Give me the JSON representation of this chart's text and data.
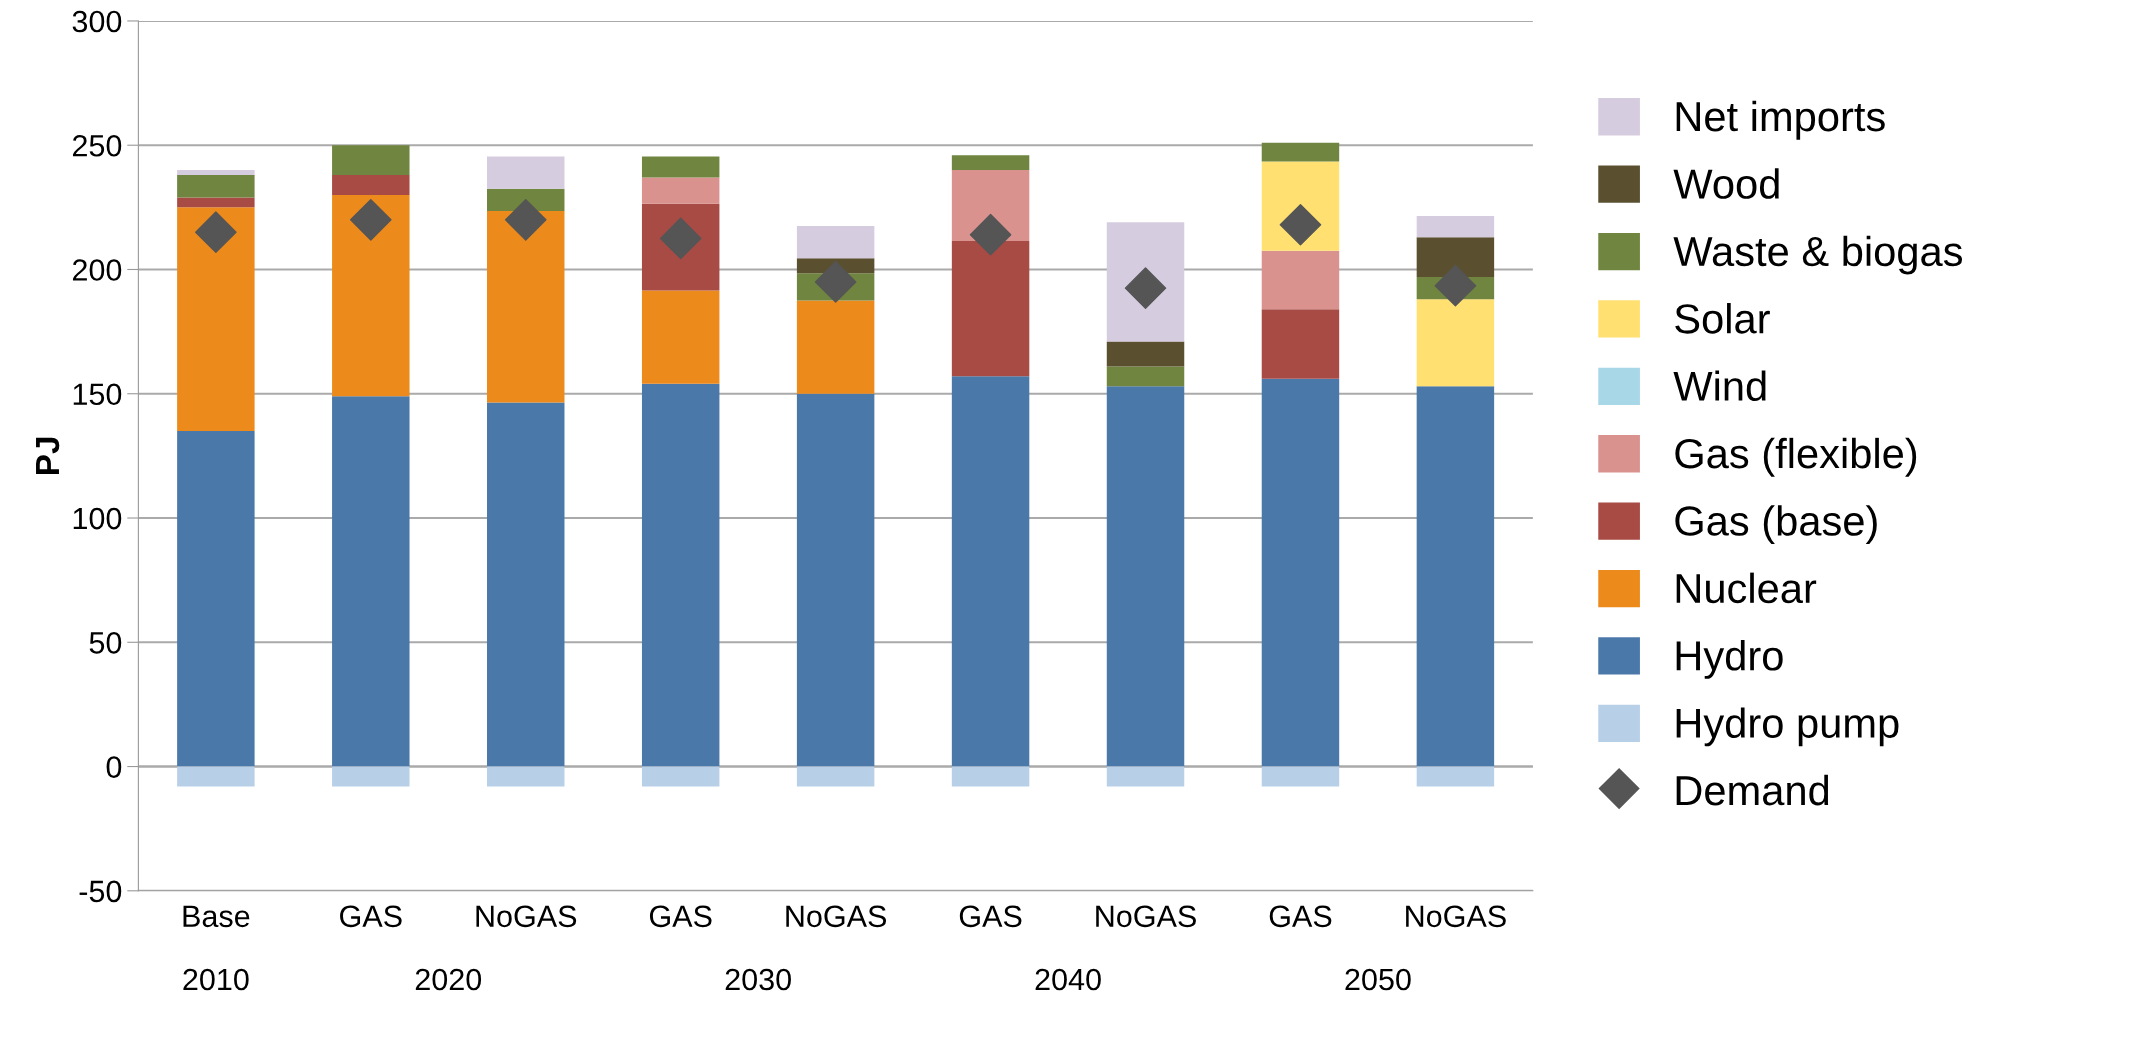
{
  "chart_data": {
    "type": "bar",
    "stacked": true,
    "ylabel": "PJ",
    "categories": [
      "Base",
      "GAS",
      "NoGAS",
      "GAS",
      "NoGAS",
      "GAS",
      "NoGAS",
      "GAS",
      "NoGAS"
    ],
    "annotations": [
      "2010",
      "2020",
      "2030",
      "2040",
      "2050"
    ],
    "series": [
      {
        "name": "Hydro",
        "color": "#4a78a8",
        "values": [
          135,
          149,
          146.5,
          154,
          150,
          157,
          153,
          156,
          153
        ]
      },
      {
        "name": "Nuclear",
        "color": "#ec8a1c",
        "values": [
          90,
          81,
          77,
          37.5,
          37.5,
          0,
          0,
          0,
          0
        ]
      },
      {
        "name": "Gas (base)",
        "color": "#a94b45",
        "values": [
          4,
          8,
          0,
          35,
          0,
          54.5,
          0,
          28,
          0
        ]
      },
      {
        "name": "Gas (flexible)",
        "color": "#d9928e",
        "values": [
          0,
          0,
          0,
          10.5,
          0,
          28.5,
          0,
          23.5,
          0
        ]
      },
      {
        "name": "Wind",
        "color": "#a8d8e8",
        "values": [
          0,
          0,
          0,
          0,
          0,
          0,
          0,
          0,
          0
        ]
      },
      {
        "name": "Solar",
        "color": "#ffe070",
        "values": [
          0,
          0,
          0,
          0,
          0,
          0,
          0,
          36,
          35
        ]
      },
      {
        "name": "Waste & biogas",
        "color": "#6f8540",
        "values": [
          9,
          12,
          9,
          8.5,
          11,
          6,
          8,
          7.5,
          9
        ]
      },
      {
        "name": "Wood",
        "color": "#5a5030",
        "values": [
          0,
          0,
          0,
          0,
          6,
          0,
          10,
          0,
          16
        ]
      },
      {
        "name": "Net imports",
        "color": "#d5cce0",
        "values": [
          2,
          0,
          13,
          0,
          13,
          0,
          48,
          0,
          8.5
        ]
      },
      {
        "name": "Hydro pump",
        "color": "#b8cfe8",
        "values": [
          -8,
          -8,
          -8,
          -8,
          -8,
          -8,
          -8,
          -8,
          -8
        ]
      },
      {
        "name": "Demand",
        "type": "scatter",
        "color": "#555555",
        "marker": "diamond",
        "values": [
          215,
          220,
          220,
          212.5,
          195,
          214,
          192.5,
          218,
          193.5
        ]
      }
    ],
    "ylim": [
      -50,
      300
    ],
    "yticks": [
      -50,
      0,
      50,
      100,
      150,
      200,
      250,
      300
    ],
    "grid": "y",
    "legend": "right"
  }
}
